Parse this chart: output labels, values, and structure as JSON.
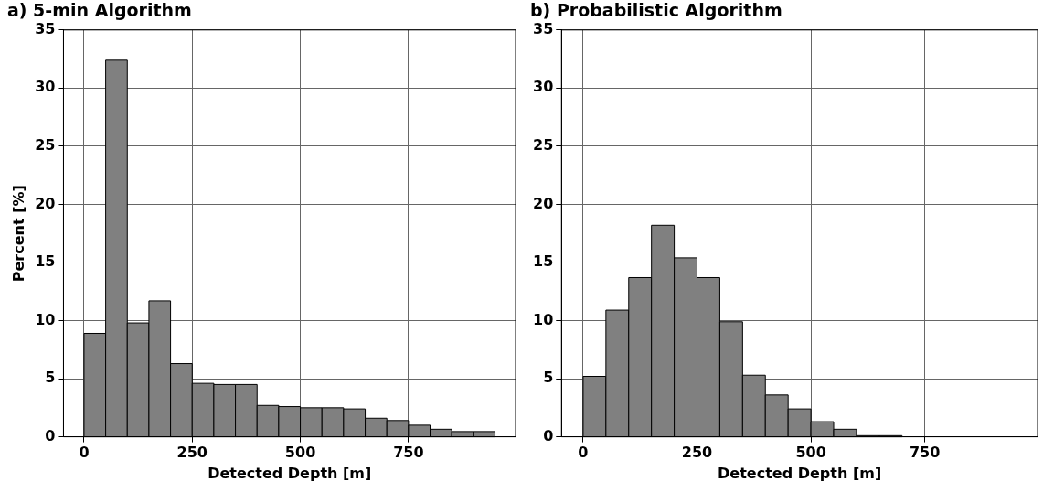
{
  "chart_data": [
    {
      "type": "histogram",
      "title": "a) 5-min Algorithm",
      "xlabel": "Detected Depth [m]",
      "ylabel": "Percent [%]",
      "color": "#808080",
      "bins": [
        0,
        50,
        100,
        150,
        200,
        250,
        300,
        350,
        400,
        450,
        500,
        550,
        600,
        650,
        700,
        750,
        800,
        850,
        900,
        950
      ],
      "values": [
        8.9,
        32.4,
        9.8,
        11.7,
        6.3,
        4.6,
        4.5,
        4.5,
        2.7,
        2.6,
        2.5,
        2.5,
        2.4,
        1.6,
        1.4,
        1.0,
        0.65,
        0.45,
        0.45
      ],
      "xlim": [
        -47.5,
        997.5
      ],
      "xticks": [
        0,
        250,
        500,
        750
      ],
      "ylim": [
        0,
        35
      ],
      "yticks": [
        0,
        5,
        10,
        15,
        20,
        25,
        30,
        35
      ],
      "grid": true
    },
    {
      "type": "histogram",
      "title": "b) Probabilistic Algorithm",
      "xlabel": "Detected Depth [m]",
      "color": "#808080",
      "bins": [
        0,
        50,
        100,
        150,
        200,
        250,
        300,
        350,
        400,
        450,
        500,
        550,
        600,
        650,
        700
      ],
      "values": [
        5.2,
        10.9,
        13.7,
        18.2,
        15.4,
        13.7,
        9.9,
        5.3,
        3.6,
        2.4,
        1.3,
        0.65,
        0.1,
        0.1
      ],
      "xlim": [
        -47.5,
        997.5
      ],
      "xticks": [
        0,
        250,
        500,
        750
      ],
      "ylim": [
        0,
        35
      ],
      "yticks": [
        0,
        5,
        10,
        15,
        20,
        25,
        30,
        35
      ],
      "grid": true
    }
  ]
}
